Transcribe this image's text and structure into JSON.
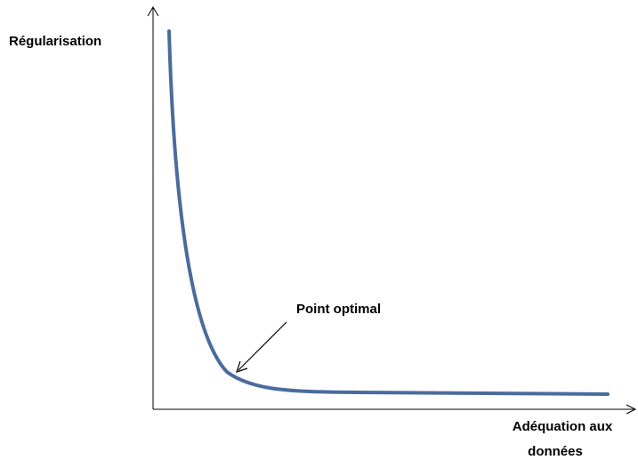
{
  "axes": {
    "y_label": "Régularisation",
    "x_label": [
      "Adéquation aux",
      "données"
    ]
  },
  "annotation": "Point optimal"
}
